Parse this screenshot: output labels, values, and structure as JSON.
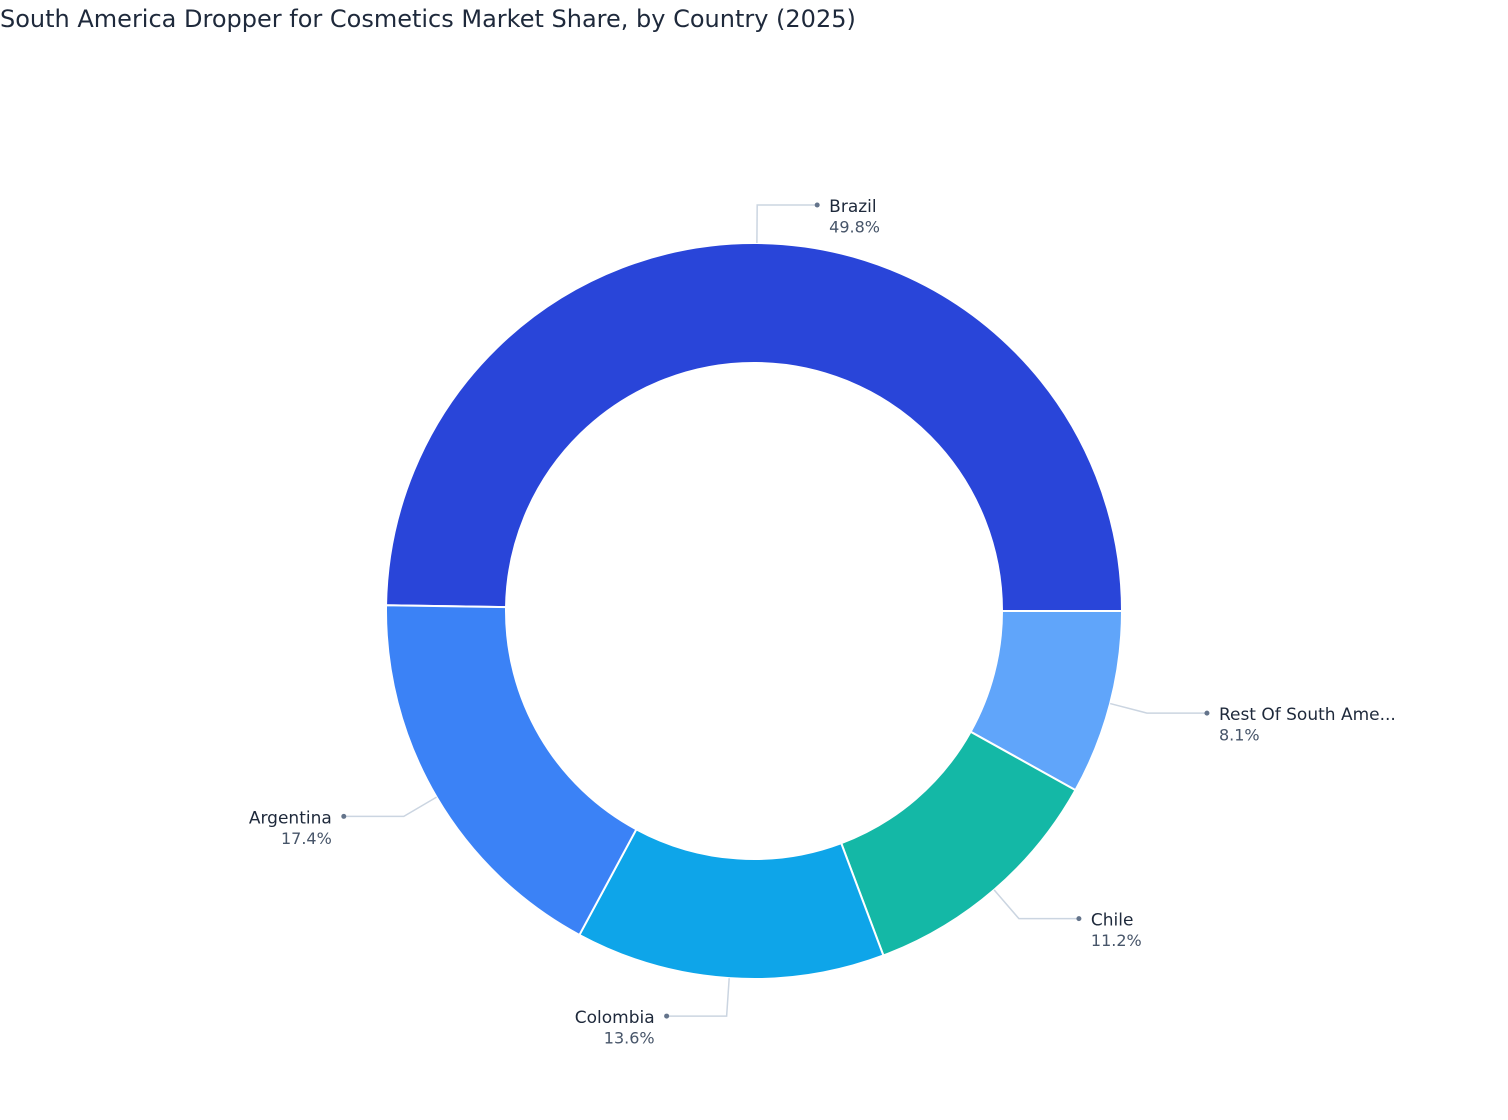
{
  "chart_data": {
    "type": "donut",
    "title": "South America Dropper for Cosmetics Market Share, by Country (2025)",
    "categories": [
      "Brazil",
      "Rest Of South Ame...",
      "Chile",
      "Colombia",
      "Argentina"
    ],
    "values": [
      49.8,
      8.1,
      11.2,
      13.6,
      17.4
    ],
    "value_labels": [
      "49.8%",
      "8.1%",
      "11.2%",
      "13.6%",
      "17.4%"
    ],
    "colors": [
      "#2945d9",
      "#60a5fa",
      "#14b8a6",
      "#0ea5e9",
      "#3b82f6"
    ]
  }
}
